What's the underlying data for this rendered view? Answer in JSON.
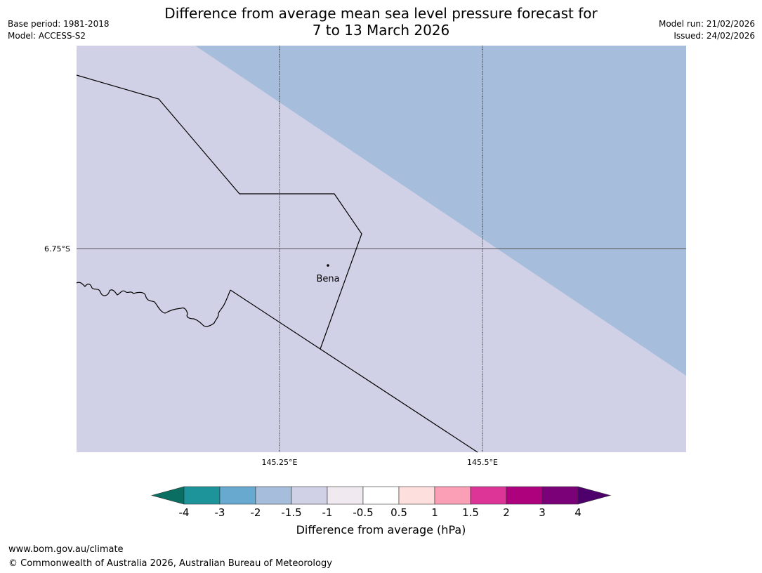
{
  "header": {
    "title_line1": "Difference from average mean sea level pressure forecast for",
    "title_line2": "7 to 13 March 2026",
    "base_period": "Base period: 1981-2018",
    "model": "Model: ACCESS-S2",
    "model_run": "Model run: 21/02/2026",
    "issued": "Issued: 24/02/2026"
  },
  "map": {
    "lat_labels": [
      "6.75°S"
    ],
    "lon_labels": [
      "145.25°E",
      "145.5°E"
    ],
    "places": [
      {
        "name": "Bena"
      }
    ],
    "fill_colors": {
      "minus_1_5_to_minus_1": "#d0d1e6",
      "minus_2_to_minus_1_5": "#a6bddb"
    }
  },
  "colorbar": {
    "tick_labels": [
      "-4",
      "-3",
      "-2",
      "-1.5",
      "-1",
      "-0.5",
      "0.5",
      "1",
      "1.5",
      "2",
      "3",
      "4"
    ],
    "colors": [
      "#0b6e63",
      "#1c9499",
      "#67a9cf",
      "#a6bddb",
      "#d0d1e6",
      "#f0eaf0",
      "#ffffff",
      "#fde0dd",
      "#fa9fb5",
      "#dd3497",
      "#ae017e",
      "#7a0177",
      "#4d006b"
    ],
    "label": "Difference from average (hPa)"
  },
  "footer": {
    "url": "www.bom.gov.au/climate",
    "copyright": "© Commonwealth of Australia 2026, Australian Bureau of Meteorology"
  }
}
